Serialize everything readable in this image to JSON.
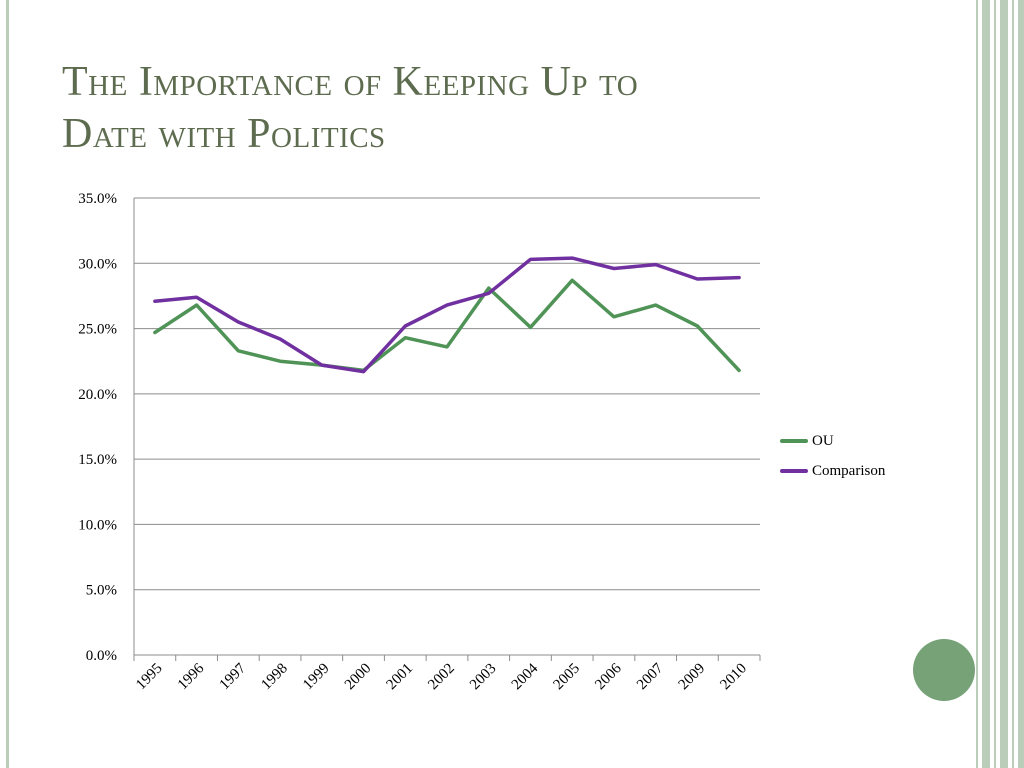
{
  "slide": {
    "title_line1": "The Importance of Keeping Up to",
    "title_line2": "Date with Politics"
  },
  "colors": {
    "title": "#5d6b4f",
    "accent": "#77a277",
    "rule": "#b9cdb9",
    "grid": "#8c8c8c",
    "ou": "#4f9357",
    "comparison": "#7030a0"
  },
  "chart_data": {
    "type": "line",
    "categories": [
      "1995",
      "1996",
      "1997",
      "1998",
      "1999",
      "2000",
      "2001",
      "2002",
      "2003",
      "2004",
      "2005",
      "2006",
      "2007",
      "2009",
      "2010"
    ],
    "series": [
      {
        "name": "OU",
        "values": [
          24.7,
          26.8,
          23.3,
          22.5,
          22.2,
          21.8,
          24.3,
          23.6,
          28.1,
          25.1,
          28.7,
          25.9,
          26.8,
          25.2,
          21.8
        ]
      },
      {
        "name": "Comparison",
        "values": [
          27.1,
          27.4,
          25.5,
          24.2,
          22.2,
          21.7,
          25.2,
          26.8,
          27.7,
          30.3,
          30.4,
          29.6,
          29.9,
          28.8,
          28.9
        ]
      }
    ],
    "ylim": [
      0,
      35
    ],
    "yticks": [
      "0.0%",
      "5.0%",
      "10.0%",
      "15.0%",
      "20.0%",
      "25.0%",
      "30.0%",
      "35.0%"
    ],
    "grid": true,
    "legend_position": "right"
  }
}
